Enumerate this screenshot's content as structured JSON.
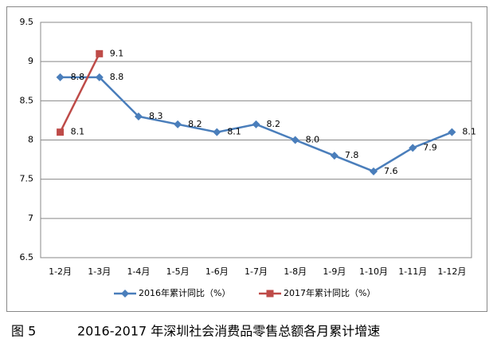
{
  "chart_data": {
    "type": "line",
    "categories": [
      "1-2月",
      "1-3月",
      "1-4月",
      "1-5月",
      "1-6月",
      "1-7月",
      "1-8月",
      "1-9月",
      "1-10月",
      "1-11月",
      "1-12月"
    ],
    "series": [
      {
        "name": "2016年累计同比（%）",
        "color": "#4a7ebb",
        "marker": "diamond",
        "values": [
          8.8,
          8.8,
          8.3,
          8.2,
          8.1,
          8.2,
          8.0,
          7.8,
          7.6,
          7.9,
          8.1
        ],
        "value_labels": [
          "8.8",
          "8.8",
          "8.3",
          "8.2",
          "8.1",
          "8.2",
          "8.0",
          "7.8",
          "7.6",
          "7.9",
          "8.1"
        ]
      },
      {
        "name": "2017年累计同比（%）",
        "color": "#be4b48",
        "marker": "square",
        "values": [
          8.1,
          9.1,
          null,
          null,
          null,
          null,
          null,
          null,
          null,
          null,
          null
        ]
      }
    ],
    "ylim": [
      6.5,
      9.5
    ],
    "yticks": [
      6.5,
      7,
      7.5,
      8,
      8.5,
      9,
      9.5
    ],
    "grid": true,
    "legend": "bottom"
  },
  "caption": {
    "label": "图 5",
    "text": "2016-2017 年深圳社会消费品零售总额各月累计增速"
  }
}
